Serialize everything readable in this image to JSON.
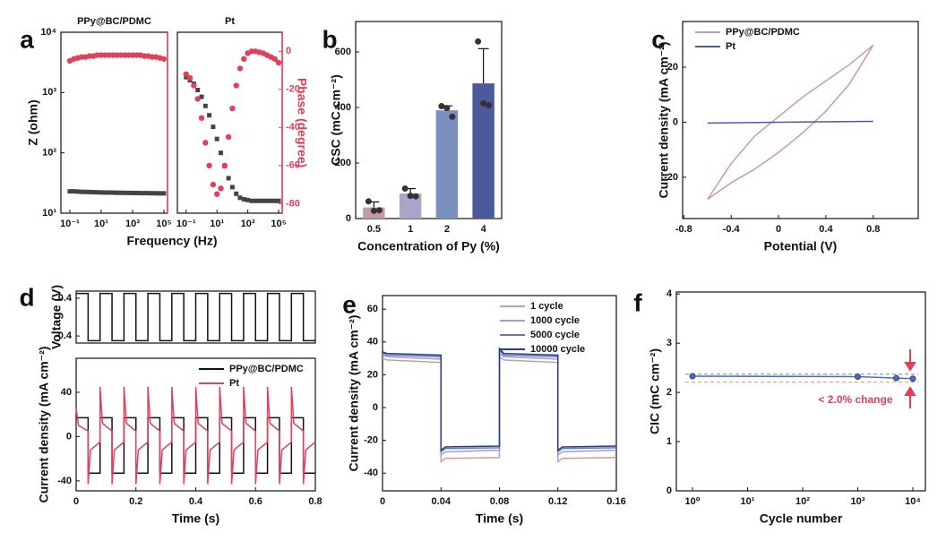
{
  "chart_data": [
    {
      "type": "scatter",
      "panel": "a",
      "title": "PPy@BC/PDMC",
      "x_label": "Frequency (Hz)",
      "y_label": "Z (ohm)",
      "xscale": "log",
      "yscale": "log",
      "x": [
        0.1,
        0.178,
        0.316,
        0.562,
        1,
        1.78,
        3.16,
        5.62,
        10,
        17.8,
        31.6,
        56.2,
        100,
        178,
        316,
        562,
        1000,
        1780,
        3160,
        5620,
        10000,
        17800,
        31600,
        56200,
        100000
      ],
      "xlim": [
        0.027,
        170000
      ],
      "xticks": [
        {
          "value": 0.1,
          "label": "10⁻¹"
        },
        {
          "value": 10,
          "label": "10¹"
        },
        {
          "value": 1000,
          "label": "10³"
        },
        {
          "value": 100000,
          "label": "10⁵"
        }
      ],
      "ylim": [
        10,
        10000
      ],
      "yticks": [
        {
          "value": 10,
          "label": "10¹"
        },
        {
          "value": 100,
          "label": "10²"
        },
        {
          "value": 1000,
          "label": "10³"
        },
        {
          "value": 10000,
          "label": "10⁴"
        }
      ],
      "y2lim": [
        -85,
        10
      ],
      "series": [
        {
          "color": "#444444",
          "marker": "square",
          "values": [
            23,
            23,
            22.8,
            22.6,
            22.5,
            22.4,
            22.3,
            22.2,
            22.1,
            22,
            22,
            21.9,
            21.8,
            21.8,
            21.7,
            21.7,
            21.6,
            21.6,
            21.5,
            21.5,
            21.5,
            21.4,
            21.4,
            21.3,
            21.3
          ]
        },
        {
          "color": "#e0405a",
          "marker": "circle",
          "axis": "y2",
          "values": [
            -5,
            -4,
            -3.5,
            -3,
            -3,
            -2.5,
            -2.5,
            -2,
            -2,
            -2,
            -2,
            -2,
            -2,
            -2,
            -2,
            -2,
            -2,
            -2,
            -2,
            -2.5,
            -2.5,
            -3,
            -3,
            -3.5,
            -4
          ]
        }
      ]
    },
    {
      "type": "scatter",
      "title": "Pt",
      "y2_label": "Phase (degree)",
      "xscale": "log",
      "yscale": "log",
      "x": [
        0.1,
        0.178,
        0.316,
        0.562,
        1,
        1.78,
        3.16,
        5.62,
        10,
        17.8,
        31.6,
        56.2,
        100,
        178,
        316,
        562,
        1000,
        1780,
        3160,
        5620,
        10000,
        17800,
        31600,
        56200,
        100000
      ],
      "xlim": [
        0.027,
        170000
      ],
      "xticks": [
        {
          "value": 0.1,
          "label": "10⁻¹"
        },
        {
          "value": 10,
          "label": "10¹"
        },
        {
          "value": 1000,
          "label": "10³"
        },
        {
          "value": 100000,
          "label": "10⁵"
        }
      ],
      "ylim": [
        10,
        10000
      ],
      "y2lim": [
        -85,
        10
      ],
      "y2ticks": [
        0,
        -20,
        -40,
        -60,
        -80
      ],
      "series": [
        {
          "color": "#444444",
          "marker": "square",
          "values": [
            1800,
            1600,
            1400,
            1100,
            850,
            600,
            420,
            270,
            170,
            100,
            60,
            38,
            27,
            21,
            18,
            17,
            16.5,
            16,
            16,
            16,
            16,
            16,
            16,
            16,
            16
          ]
        },
        {
          "color": "#e0405a",
          "marker": "circle",
          "axis": "y2",
          "values": [
            -12,
            -14,
            -18,
            -25,
            -35,
            -48,
            -60,
            -70,
            -75,
            -72,
            -60,
            -45,
            -30,
            -18,
            -9,
            -4,
            -1,
            0,
            0,
            -0.5,
            -1,
            -2,
            -3,
            -4,
            -6
          ]
        }
      ]
    },
    {
      "type": "bar",
      "panel": "b",
      "x_label": "Concentration of Py (%)",
      "y_label": "CSC (mC cm⁻²)",
      "categories": [
        "0.5",
        "1",
        "2",
        "4"
      ],
      "values": [
        40,
        90,
        390,
        487
      ],
      "errors": [
        20,
        18,
        16,
        125
      ],
      "points": [
        [
          62,
          28,
          30
        ],
        [
          108,
          82,
          80
        ],
        [
          405,
          398,
          367
        ],
        [
          638,
          415,
          408
        ]
      ],
      "colors": [
        "#c39aa9",
        "#aaa4ca",
        "#7b8fbf",
        "#4b5a9a"
      ],
      "ylim": [
        0,
        710
      ],
      "yticks": [
        0,
        200,
        400,
        600
      ]
    },
    {
      "type": "line",
      "panel": "c",
      "x_label": "Potential (V)",
      "y_label": "Current density (mA cm⁻²)",
      "legend": "upper left",
      "xlim": [
        -0.81,
        1.18
      ],
      "xticks": [
        -0.8,
        -0.4,
        0,
        0.4,
        0.8
      ],
      "ylim": [
        -35,
        36.6
      ],
      "yticks": [
        -20,
        0,
        20
      ],
      "series": [
        {
          "name": "PPy@BC/PDMC",
          "color": "#c99aa8",
          "x": [
            -0.6,
            -0.4,
            -0.2,
            0,
            0.2,
            0.4,
            0.6,
            0.8,
            0.6,
            0.4,
            0.2,
            0,
            -0.2,
            -0.4,
            -0.6
          ],
          "values": [
            -28,
            -15,
            -5,
            2,
            9,
            15,
            21,
            28,
            14,
            4,
            -4,
            -11,
            -17,
            -22,
            -28
          ]
        },
        {
          "name": "Pt",
          "color": "#4a5aa8",
          "x": [
            -0.6,
            0,
            0.8
          ],
          "values": [
            -0.3,
            0,
            0.3
          ]
        }
      ]
    },
    {
      "type": "line",
      "panel": "d",
      "y_label": "Voltage (V)",
      "xlim": [
        0,
        0.8
      ],
      "ylim": [
        -0.55,
        0.55
      ],
      "yticks": [
        0.4,
        -0.4
      ],
      "series": [
        {
          "color": "#111111",
          "x": [
            0,
            0.04,
            0.04,
            0.08,
            0.08,
            0.12,
            0.12,
            0.16,
            0.16,
            0.2,
            0.2,
            0.24,
            0.24,
            0.28,
            0.28,
            0.32,
            0.32,
            0.36,
            0.36,
            0.4,
            0.4,
            0.44,
            0.44,
            0.48,
            0.48,
            0.52,
            0.52,
            0.56,
            0.56,
            0.6,
            0.6,
            0.64,
            0.64,
            0.68,
            0.68,
            0.72,
            0.72,
            0.76,
            0.76,
            0.8
          ],
          "values": [
            0.5,
            0.5,
            -0.5,
            -0.5,
            0.5,
            0.5,
            -0.5,
            -0.5,
            0.5,
            0.5,
            -0.5,
            -0.5,
            0.5,
            0.5,
            -0.5,
            -0.5,
            0.5,
            0.5,
            -0.5,
            -0.5,
            0.5,
            0.5,
            -0.5,
            -0.5,
            0.5,
            0.5,
            -0.5,
            -0.5,
            0.5,
            0.5,
            -0.5,
            -0.5,
            0.5,
            0.5,
            -0.5,
            -0.5,
            0.5,
            0.5,
            -0.5,
            -0.5
          ]
        }
      ]
    },
    {
      "type": "line",
      "x_label": "Time (s)",
      "y_label": "Current density (mA cm⁻²)",
      "legend": "upper right",
      "xlim": [
        0,
        0.8
      ],
      "xticks": [
        0,
        0.2,
        0.4,
        0.6,
        0.8
      ],
      "ylim": [
        -49,
        70.7
      ],
      "yticks": [
        -40,
        0,
        40
      ],
      "series": [
        {
          "name": "PPy@BC/PDMC",
          "color": "#111111",
          "x": [
            0,
            0.04,
            0.04,
            0.08,
            0.08,
            0.12,
            0.12,
            0.16,
            0.16,
            0.2,
            0.2,
            0.24,
            0.24,
            0.28,
            0.28,
            0.32,
            0.32,
            0.36,
            0.36,
            0.4,
            0.4,
            0.44,
            0.44,
            0.48,
            0.48,
            0.52,
            0.52,
            0.56,
            0.56,
            0.6,
            0.6,
            0.64,
            0.64,
            0.68,
            0.68,
            0.72,
            0.72,
            0.76,
            0.76,
            0.8
          ],
          "values": [
            17,
            17,
            -33,
            -33,
            17,
            17,
            -33,
            -33,
            17,
            17,
            -33,
            -33,
            17,
            17,
            -33,
            -33,
            17,
            17,
            -33,
            -33,
            17,
            17,
            -33,
            -33,
            17,
            17,
            -33,
            -33,
            17,
            17,
            -33,
            -33,
            17,
            17,
            -33,
            -33,
            17,
            17,
            -33,
            -33
          ]
        },
        {
          "name": "Pt",
          "color": "#e0405a",
          "x": [
            0,
            0.008,
            0.04,
            0.04,
            0.048,
            0.08,
            0.08,
            0.088,
            0.12,
            0.12,
            0.128,
            0.16,
            0.16,
            0.168,
            0.2,
            0.2,
            0.208,
            0.24,
            0.24,
            0.248,
            0.28,
            0.28,
            0.288,
            0.32,
            0.32,
            0.328,
            0.36,
            0.36,
            0.368,
            0.4,
            0.4,
            0.408,
            0.44,
            0.44,
            0.448,
            0.48,
            0.48,
            0.488,
            0.52,
            0.52,
            0.528,
            0.56,
            0.56,
            0.568,
            0.6,
            0.6,
            0.608,
            0.64,
            0.64,
            0.648,
            0.68,
            0.68,
            0.688,
            0.72,
            0.72,
            0.728,
            0.76,
            0.76,
            0.768,
            0.8
          ],
          "values": [
            25,
            10,
            5,
            -43,
            -12,
            -5,
            45,
            12,
            5,
            -43,
            -12,
            -5,
            45,
            12,
            5,
            -43,
            -12,
            -5,
            45,
            12,
            5,
            -43,
            -12,
            -5,
            45,
            12,
            5,
            -43,
            -12,
            -5,
            45,
            12,
            5,
            -43,
            -12,
            -5,
            45,
            12,
            5,
            -43,
            -12,
            -5,
            45,
            12,
            5,
            -43,
            -12,
            -5,
            45,
            12,
            5,
            -43,
            -12,
            -5,
            45,
            12,
            5,
            -43,
            -12,
            -5
          ]
        }
      ]
    },
    {
      "type": "line",
      "panel": "e",
      "x_label": "Time (s)",
      "y_label": "Current density (mA cm⁻²)",
      "legend": "upper right",
      "x": [
        0,
        0.003,
        0.04,
        0.04,
        0.043,
        0.08,
        0.08,
        0.083,
        0.12,
        0.12,
        0.123,
        0.16
      ],
      "xlim": [
        0,
        0.16
      ],
      "xticks": [
        0,
        0.04,
        0.08,
        0.12,
        0.16
      ],
      "ylim": [
        -50.8,
        68.3
      ],
      "yticks": [
        -40,
        -20,
        0,
        20,
        40,
        60
      ],
      "series": [
        {
          "name": "1 cycle",
          "color": "#c99aa8",
          "values": [
            30,
            29,
            27.5,
            -33,
            -31,
            -30.5,
            31,
            29,
            27.5,
            -33,
            -31,
            -30.5
          ]
        },
        {
          "name": "1000 cycle",
          "color": "#9da0cc",
          "values": [
            32,
            31,
            29.5,
            -29,
            -27,
            -26,
            33,
            31,
            29.5,
            -29,
            -27,
            -26
          ]
        },
        {
          "name": "5000 cycle",
          "color": "#5a7ac8",
          "values": [
            33,
            32,
            31,
            -27,
            -25,
            -24.5,
            35,
            32,
            31,
            -27,
            -25,
            -24.5
          ]
        },
        {
          "name": "10000 cycle",
          "color": "#2e3a80",
          "values": [
            34,
            33,
            32,
            -26,
            -24,
            -23.5,
            36,
            33,
            32,
            -26,
            -24,
            -23.5
          ]
        }
      ]
    },
    {
      "type": "line",
      "panel": "f",
      "x_label": "Cycle number",
      "y_label": "CIC (mC cm⁻²)",
      "xscale": "log",
      "xlim": [
        0.51,
        16900
      ],
      "xticks": [
        {
          "value": 1,
          "label": "10⁰"
        },
        {
          "value": 10,
          "label": "10¹"
        },
        {
          "value": 100,
          "label": "10²"
        },
        {
          "value": 1000,
          "label": "10³"
        },
        {
          "value": 10000,
          "label": "10⁴"
        }
      ],
      "ylim": [
        0,
        4.04
      ],
      "yticks": [
        0,
        1,
        2,
        3,
        4
      ],
      "reference_lines": [
        {
          "value": 2.37,
          "color": "#9a9a9a"
        },
        {
          "value": 2.21,
          "color": "#e8a070"
        }
      ],
      "annotation": "< 2.0% change",
      "annotation_color": "#e0405a",
      "series": [
        {
          "color": "#4a6fc0",
          "marker": "circle",
          "x": [
            1,
            1000,
            5000,
            10000
          ],
          "values": [
            2.33,
            2.32,
            2.29,
            2.28
          ]
        }
      ]
    }
  ]
}
